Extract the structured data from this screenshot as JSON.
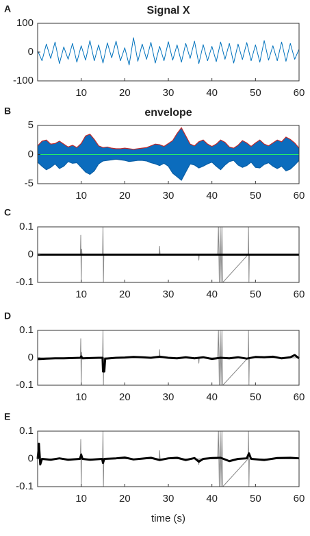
{
  "chart_data": [
    {
      "type": "line",
      "label": "A",
      "title": "Signal X",
      "xlim": [
        0,
        60
      ],
      "xticks": [
        10,
        20,
        30,
        40,
        50,
        60
      ],
      "ylim": [
        -100,
        100
      ],
      "yticks": [
        -100,
        0,
        100
      ],
      "series": [
        {
          "color": "#0072bd",
          "x": [
            0,
            1,
            2,
            3,
            4,
            5,
            6,
            7,
            8,
            9,
            10,
            11,
            12,
            13,
            14,
            15,
            16,
            17,
            18,
            19,
            20,
            21,
            22,
            23,
            24,
            25,
            26,
            27,
            28,
            29,
            30,
            31,
            32,
            33,
            34,
            35,
            36,
            37,
            38,
            39,
            40,
            41,
            42,
            43,
            44,
            45,
            46,
            47,
            48,
            49,
            50,
            51,
            52,
            53,
            54,
            55,
            56,
            57,
            58,
            59,
            60
          ],
          "values": [
            5,
            -30,
            28,
            -22,
            35,
            -40,
            18,
            -25,
            30,
            -35,
            22,
            -28,
            40,
            -30,
            25,
            -38,
            32,
            -20,
            38,
            -30,
            15,
            -45,
            50,
            -32,
            28,
            -25,
            34,
            -38,
            20,
            -30,
            36,
            -28,
            25,
            -35,
            30,
            -22,
            38,
            -40,
            26,
            -30,
            20,
            -33,
            35,
            -25,
            30,
            -38,
            28,
            -26,
            33,
            -30,
            25,
            -35,
            40,
            -28,
            22,
            -30,
            35,
            -32,
            30,
            -25,
            10
          ]
        }
      ]
    },
    {
      "type": "line",
      "label": "B",
      "title": "envelope",
      "xlim": [
        0,
        60
      ],
      "xticks": [
        10,
        20,
        30,
        40,
        50,
        60
      ],
      "ylim": [
        -5,
        5
      ],
      "yticks": [
        -5,
        0,
        5
      ],
      "series": [
        {
          "color": "#0b5fa5",
          "fill": "#0b6cbd",
          "area": true,
          "x": [
            0,
            1,
            2,
            3,
            4,
            5,
            6,
            7,
            8,
            9,
            10,
            11,
            12,
            13,
            14,
            15,
            16,
            17,
            18,
            19,
            20,
            21,
            22,
            23,
            24,
            25,
            26,
            27,
            28,
            29,
            30,
            31,
            32,
            33,
            34,
            35,
            36,
            37,
            38,
            39,
            40,
            41,
            42,
            43,
            44,
            45,
            46,
            47,
            48,
            49,
            50,
            51,
            52,
            53,
            54,
            55,
            56,
            57,
            58,
            59,
            60
          ],
          "values": [
            -1.3,
            -2.0,
            -2.6,
            -2.2,
            -1.6,
            -2.4,
            -2.0,
            -1.2,
            -1.5,
            -1.4,
            -2.2,
            -3.0,
            -3.4,
            -2.8,
            -1.6,
            -1.1,
            -1.0,
            -0.9,
            -0.8,
            -0.9,
            -1.0,
            -1.2,
            -1.1,
            -1.0,
            -1.0,
            -1.1,
            -1.4,
            -1.6,
            -1.9,
            -1.5,
            -2.0,
            -3.2,
            -3.8,
            -4.4,
            -3.0,
            -1.6,
            -1.8,
            -2.3,
            -2.0,
            -1.6,
            -1.3,
            -2.0,
            -2.6,
            -1.8,
            -1.2,
            -1.0,
            -1.8,
            -2.2,
            -1.9,
            -1.3,
            -2.2,
            -2.3,
            -1.7,
            -1.4,
            -2.0,
            -2.4,
            -2.0,
            -2.8,
            -2.5,
            -1.8,
            -1.0
          ]
        },
        {
          "color": "#c0292b",
          "fill": "#0b6cbd",
          "area": true,
          "x": [
            0,
            1,
            2,
            3,
            4,
            5,
            6,
            7,
            8,
            9,
            10,
            11,
            12,
            13,
            14,
            15,
            16,
            17,
            18,
            19,
            20,
            21,
            22,
            23,
            24,
            25,
            26,
            27,
            28,
            29,
            30,
            31,
            32,
            33,
            34,
            35,
            36,
            37,
            38,
            39,
            40,
            41,
            42,
            43,
            44,
            45,
            46,
            47,
            48,
            49,
            50,
            51,
            52,
            53,
            54,
            55,
            56,
            57,
            58,
            59,
            60
          ],
          "values": [
            1.5,
            2.3,
            2.5,
            1.8,
            1.9,
            2.3,
            1.8,
            1.3,
            1.6,
            1.2,
            1.9,
            3.2,
            3.5,
            2.6,
            1.5,
            1.2,
            1.3,
            1.1,
            1.0,
            1.0,
            1.1,
            1.0,
            0.9,
            1.0,
            1.1,
            1.2,
            1.5,
            1.8,
            1.7,
            1.4,
            1.9,
            2.4,
            3.6,
            4.6,
            3.2,
            1.8,
            1.5,
            2.2,
            2.5,
            1.8,
            1.4,
            1.8,
            2.5,
            2.1,
            1.3,
            1.1,
            1.6,
            2.4,
            2.0,
            1.4,
            2.0,
            2.5,
            1.8,
            1.5,
            2.0,
            2.5,
            2.2,
            3.0,
            2.6,
            2.0,
            1.1
          ]
        },
        {
          "color": "#22ee66",
          "x": [
            0,
            60
          ],
          "values": [
            0,
            0
          ]
        }
      ]
    },
    {
      "type": "line",
      "label": "C",
      "xlim": [
        0,
        60
      ],
      "xticks": [
        10,
        20,
        30,
        40,
        50,
        60
      ],
      "ylim": [
        -0.1,
        0.1
      ],
      "yticks": [
        -0.1,
        0,
        0.1
      ],
      "series": [
        {
          "color": "#8a8a8a",
          "x": [
            0,
            9.8,
            9.9,
            10,
            10.1,
            10.2,
            14.9,
            15,
            15.1,
            15.2,
            27.9,
            28,
            28.1,
            36.9,
            37,
            37.1,
            41.3,
            41.5,
            41.7,
            41.9,
            42.1,
            42.3,
            42.5,
            48.3,
            48.4,
            48.5,
            48.6,
            60
          ],
          "values": [
            0,
            0,
            0.07,
            -0.1,
            0.02,
            0,
            0,
            0.1,
            -0.1,
            0,
            0,
            0.03,
            0,
            0,
            -0.02,
            0,
            0,
            0.1,
            -0.1,
            0.1,
            -0.1,
            0.1,
            -0.1,
            0,
            0.1,
            -0.1,
            0,
            0
          ]
        },
        {
          "color": "#000000",
          "width": 3,
          "x": [
            0,
            60
          ],
          "values": [
            0,
            0
          ]
        }
      ]
    },
    {
      "type": "line",
      "label": "D",
      "xlim": [
        0,
        60
      ],
      "xticks": [
        10,
        20,
        30,
        40,
        50,
        60
      ],
      "ylim": [
        -0.1,
        0.1
      ],
      "yticks": [
        -0.1,
        0,
        0.1
      ],
      "series": [
        {
          "color": "#8a8a8a",
          "x": [
            0,
            9.8,
            9.9,
            10,
            10.1,
            10.2,
            14.9,
            15,
            15.1,
            15.2,
            27.9,
            28,
            28.1,
            36.9,
            37,
            37.1,
            41.3,
            41.5,
            41.7,
            41.9,
            42.1,
            42.3,
            42.5,
            48.3,
            48.4,
            48.5,
            48.6,
            60
          ],
          "values": [
            0,
            0,
            0.07,
            -0.1,
            0.02,
            0,
            0,
            0.1,
            -0.1,
            0,
            0,
            0.03,
            0,
            0,
            -0.02,
            0,
            0,
            0.1,
            -0.1,
            0.1,
            -0.1,
            0.1,
            -0.1,
            0,
            0.1,
            -0.1,
            0,
            0
          ]
        },
        {
          "color": "#000000",
          "width": 3,
          "x": [
            0,
            2,
            4,
            6,
            8,
            9.8,
            10,
            10.3,
            12,
            14,
            14.9,
            15,
            15.3,
            15.5,
            18,
            20,
            22,
            24,
            26,
            28,
            30,
            32,
            34,
            36,
            38,
            40,
            42,
            44,
            46,
            48,
            50,
            52,
            54,
            56,
            58,
            59,
            60
          ],
          "values": [
            -0.005,
            -0.003,
            -0.002,
            -0.002,
            -0.001,
            0,
            0.005,
            -0.002,
            -0.001,
            0,
            0,
            -0.05,
            -0.05,
            -0.003,
            0,
            0.001,
            0.003,
            0.002,
            0,
            0.004,
            0,
            -0.002,
            0.002,
            -0.002,
            0.002,
            -0.004,
            0,
            -0.002,
            0.002,
            -0.003,
            0.003,
            0.002,
            0.004,
            -0.002,
            0.002,
            0.01,
            -0.002
          ]
        }
      ]
    },
    {
      "type": "line",
      "label": "E",
      "xlabel": "time (s)",
      "xlim": [
        0,
        60
      ],
      "xticks": [
        10,
        20,
        30,
        40,
        50,
        60
      ],
      "ylim": [
        -0.1,
        0.1
      ],
      "yticks": [
        -0.1,
        0,
        0.1
      ],
      "series": [
        {
          "color": "#8a8a8a",
          "x": [
            0,
            9.8,
            9.9,
            10,
            10.1,
            10.2,
            14.9,
            15,
            15.1,
            15.2,
            27.9,
            28,
            28.1,
            36.9,
            37,
            37.1,
            41.3,
            41.5,
            41.7,
            41.9,
            42.1,
            42.3,
            42.5,
            48.3,
            48.4,
            48.5,
            48.6,
            60
          ],
          "values": [
            0,
            0,
            0.07,
            -0.1,
            0.02,
            0,
            0,
            0.1,
            -0.1,
            0,
            0,
            0.03,
            0,
            0,
            -0.02,
            0,
            0,
            0.1,
            -0.1,
            0.1,
            -0.1,
            0.1,
            -0.1,
            0,
            0.1,
            -0.1,
            0,
            0
          ]
        },
        {
          "color": "#000000",
          "width": 3,
          "x": [
            0,
            0.3,
            0.6,
            1,
            3,
            5,
            7,
            9.7,
            10,
            10.3,
            12,
            14.8,
            15,
            15.3,
            18,
            20,
            22,
            24,
            26,
            28,
            30,
            32,
            34,
            36,
            37,
            38,
            40,
            42,
            44,
            46,
            48,
            48.5,
            49,
            52,
            55,
            58,
            60
          ],
          "values": [
            0,
            0.055,
            -0.02,
            0,
            -0.003,
            0.002,
            -0.003,
            0,
            0.015,
            0,
            -0.003,
            0,
            -0.015,
            0,
            0.002,
            0.005,
            -0.002,
            0.001,
            0.004,
            -0.004,
            0.002,
            0.004,
            -0.004,
            0.003,
            -0.01,
            0,
            0.003,
            0.004,
            -0.008,
            0,
            0.002,
            0.02,
            0,
            -0.004,
            0.003,
            0.004,
            0.002
          ]
        }
      ]
    }
  ]
}
